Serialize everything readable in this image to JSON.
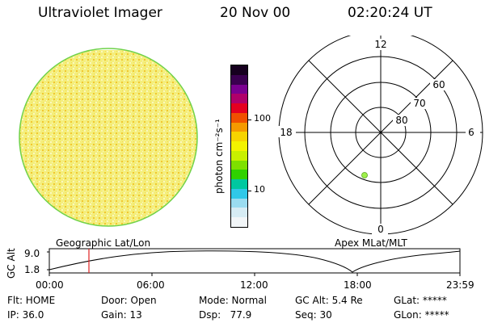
{
  "header": {
    "title": "Ultraviolet Imager",
    "date": "20 Nov 00",
    "time": "02:20:24 UT"
  },
  "colorbar": {
    "unit_label": "photon cm⁻²s⁻¹",
    "ticks": [
      "100",
      "10"
    ],
    "colors": [
      "#16001f",
      "#3a0050",
      "#7a0090",
      "#b0006a",
      "#e40020",
      "#f05000",
      "#f59a00",
      "#f7d400",
      "#f3f300",
      "#c8f000",
      "#7ee000",
      "#2fd200",
      "#00c8a0",
      "#30c8e8",
      "#9adcf0",
      "#d6ecf4",
      "#f2f6f8"
    ]
  },
  "image_panel": {
    "fill_color": "#f6f08a",
    "rim_color": "#6fd24a"
  },
  "polar_plot": {
    "top_label": "12",
    "bottom_label": "0",
    "left_label": "18",
    "right_label": "6",
    "ring_labels": [
      "60",
      "70",
      "80"
    ],
    "marker_color": "#9ef04a"
  },
  "timeline": {
    "left_label": "Geographic Lat/Lon",
    "right_label": "Apex MLat/MLT",
    "axis_label": "GC Alt",
    "y_ticks": [
      "9.0",
      "1.8"
    ],
    "x_ticks": [
      "00:00",
      "06:00",
      "12:00",
      "18:00",
      "23:59"
    ],
    "cursor_color": "#e02020"
  },
  "info": {
    "row1": [
      {
        "name": "flt",
        "text": "Flt: HOME"
      },
      {
        "name": "door",
        "text": "Door: Open"
      },
      {
        "name": "mode",
        "text": "Mode: Normal"
      },
      {
        "name": "gc-alt",
        "text": "GC Alt: 5.4 Re"
      },
      {
        "name": "glat",
        "text": "GLat: *****"
      }
    ],
    "row2": [
      {
        "name": "ip",
        "text": "IP: 36.0"
      },
      {
        "name": "gain",
        "text": "Gain: 13"
      },
      {
        "name": "dsp",
        "text": "Dsp:   77.9"
      },
      {
        "name": "seq",
        "text": "Seq: 30"
      },
      {
        "name": "glon",
        "text": "GLon: *****"
      }
    ]
  }
}
